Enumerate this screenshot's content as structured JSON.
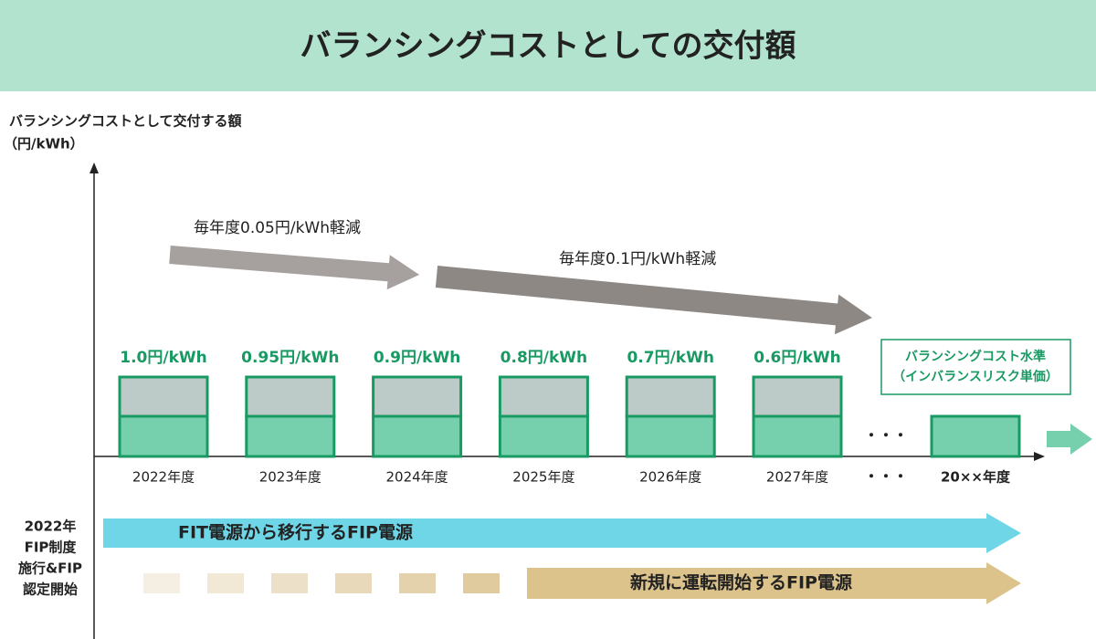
{
  "header": {
    "title": "バランシングコストとしての交付額"
  },
  "axis_label": [
    "バランシングコストとして交付する額",
    "（円/kWh）"
  ],
  "annotations": [
    "毎年度0.05円/kWh軽減",
    "毎年度0.1円/kWh軽減"
  ],
  "columns": [
    {
      "label": "1.0円/kWh",
      "year": "2022年度"
    },
    {
      "label": "0.95円/kWh",
      "year": "2023年度"
    },
    {
      "label": "0.9円/kWh",
      "year": "2024年度"
    },
    {
      "label": "0.8円/kWh",
      "year": "2025年度"
    },
    {
      "label": "0.7円/kWh",
      "year": "2026年度"
    },
    {
      "label": "0.6円/kWh",
      "year": "2027年度"
    }
  ],
  "ellipsis": "・・・",
  "final": {
    "year": "20××年度",
    "legend": [
      "バランシングコスト水準",
      "（インバランスリスク単価）"
    ]
  },
  "side_note": [
    "2022年",
    "FIP制度",
    "施行&FIP",
    "認定開始"
  ],
  "flows": [
    "FIT電源から移行するFIP電源",
    "新規に運転開始するFIP電源"
  ]
}
